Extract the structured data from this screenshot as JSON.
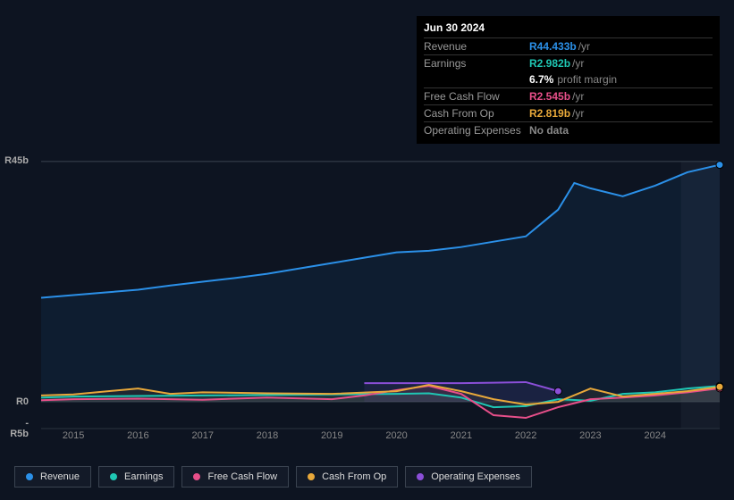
{
  "tooltip": {
    "date": "Jun 30 2024",
    "rows": [
      {
        "label": "Revenue",
        "value": "R44.433b",
        "unit": "/yr",
        "color": "#2b90e8"
      },
      {
        "label": "Earnings",
        "value": "R2.982b",
        "unit": "/yr",
        "color": "#1fc7b4",
        "sub_pct": "6.7%",
        "sub_txt": "profit margin"
      },
      {
        "label": "Free Cash Flow",
        "value": "R2.545b",
        "unit": "/yr",
        "color": "#e84f8a"
      },
      {
        "label": "Cash From Op",
        "value": "R2.819b",
        "unit": "/yr",
        "color": "#e8a83a"
      },
      {
        "label": "Operating Expenses",
        "value": "No data",
        "unit": "",
        "color": "#888"
      }
    ]
  },
  "chart": {
    "type": "line",
    "background": "#0d1421",
    "grid_color": "#2a3340",
    "y_min": -5,
    "y_max": 45,
    "y_ticks": [
      {
        "v": 45,
        "label": "R45b"
      },
      {
        "v": 0,
        "label": "R0"
      },
      {
        "v": -5,
        "label": "-R5b"
      }
    ],
    "x_min": 2014.5,
    "x_max": 2025,
    "x_ticks": [
      "2015",
      "2016",
      "2017",
      "2018",
      "2019",
      "2020",
      "2021",
      "2022",
      "2023",
      "2024"
    ],
    "highlight_from": 2024.4,
    "highlight_to": 2025,
    "series": [
      {
        "name": "Revenue",
        "color": "#2b90e8",
        "width": 2,
        "fill_opacity": 0.08,
        "data_x": [
          2014.5,
          2015,
          2015.5,
          2016,
          2016.5,
          2017,
          2017.5,
          2018,
          2018.5,
          2019,
          2019.5,
          2020,
          2020.5,
          2021,
          2021.5,
          2022,
          2022.5,
          2022.75,
          2023,
          2023.5,
          2024,
          2024.5,
          2025
        ],
        "data_y": [
          19.5,
          20,
          20.5,
          21,
          21.8,
          22.5,
          23.2,
          24,
          25,
          26,
          27,
          28,
          28.3,
          29,
          30,
          31,
          36,
          41,
          40,
          38.5,
          40.5,
          43,
          44.4
        ]
      },
      {
        "name": "Earnings",
        "color": "#1fc7b4",
        "width": 2,
        "fill_opacity": 0.1,
        "data_x": [
          2014.5,
          2015,
          2016,
          2017,
          2018,
          2019,
          2020,
          2020.5,
          2021,
          2021.5,
          2022,
          2022.5,
          2023,
          2023.5,
          2024,
          2024.5,
          2025
        ],
        "data_y": [
          0.8,
          1.0,
          1.1,
          1.2,
          1.3,
          1.4,
          1.5,
          1.6,
          0.8,
          -1.0,
          -0.8,
          0.5,
          0.2,
          1.5,
          1.8,
          2.5,
          2.98
        ]
      },
      {
        "name": "Free Cash Flow",
        "color": "#e84f8a",
        "width": 2,
        "fill_opacity": 0.08,
        "data_x": [
          2014.5,
          2015,
          2016,
          2017,
          2018,
          2019,
          2019.5,
          2020,
          2020.5,
          2021,
          2021.5,
          2022,
          2022.5,
          2023,
          2023.5,
          2024,
          2024.5,
          2025
        ],
        "data_y": [
          0.3,
          0.5,
          0.6,
          0.4,
          0.8,
          0.5,
          1.2,
          2.2,
          3.0,
          1.5,
          -2.5,
          -3.0,
          -1.0,
          0.5,
          0.8,
          1.2,
          1.8,
          2.55
        ]
      },
      {
        "name": "Cash From Op",
        "color": "#e8a83a",
        "width": 2,
        "fill_opacity": 0.08,
        "data_x": [
          2014.5,
          2015,
          2016,
          2016.5,
          2017,
          2018,
          2019,
          2020,
          2020.5,
          2021,
          2021.5,
          2022,
          2022.5,
          2023,
          2023.5,
          2024,
          2024.5,
          2025
        ],
        "data_y": [
          1.2,
          1.4,
          2.5,
          1.5,
          1.8,
          1.6,
          1.5,
          2.0,
          3.2,
          2.0,
          0.5,
          -0.5,
          0.0,
          2.5,
          1.0,
          1.5,
          2.0,
          2.82
        ]
      },
      {
        "name": "Operating Expenses",
        "color": "#8b4fd8",
        "width": 2,
        "fill_opacity": 0.1,
        "data_x": [
          2019.5,
          2020,
          2020.5,
          2021,
          2021.5,
          2022,
          2022.5
        ],
        "data_y": [
          3.5,
          3.5,
          3.5,
          3.5,
          3.6,
          3.7,
          2.0
        ]
      }
    ]
  },
  "legend": [
    {
      "label": "Revenue",
      "color": "#2b90e8"
    },
    {
      "label": "Earnings",
      "color": "#1fc7b4"
    },
    {
      "label": "Free Cash Flow",
      "color": "#e84f8a"
    },
    {
      "label": "Cash From Op",
      "color": "#e8a83a"
    },
    {
      "label": "Operating Expenses",
      "color": "#8b4fd8"
    }
  ]
}
